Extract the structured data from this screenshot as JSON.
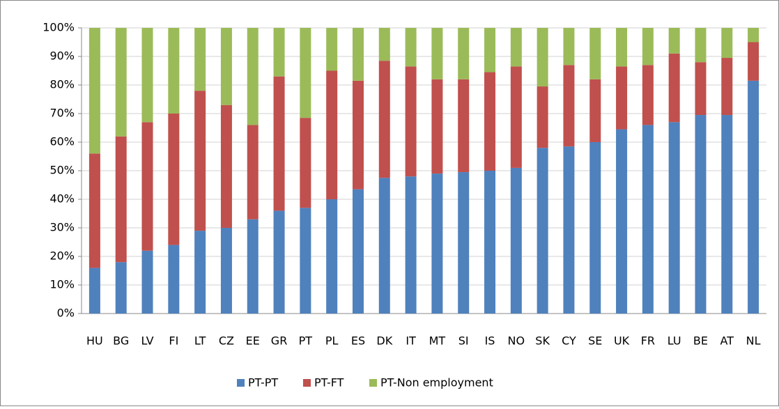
{
  "chart_data": {
    "type": "stacked_bar",
    "categories": [
      "HU",
      "BG",
      "LV",
      "FI",
      "LT",
      "CZ",
      "EE",
      "GR",
      "PT",
      "PL",
      "ES",
      "DK",
      "IT",
      "MT",
      "SI",
      "IS",
      "NO",
      "SK",
      "CY",
      "SE",
      "UK",
      "FR",
      "LU",
      "BE",
      "AT",
      "NL"
    ],
    "series": [
      {
        "name": "PT-PT",
        "color": "#4f81bd",
        "values": [
          16,
          18,
          22,
          24,
          29,
          30,
          33,
          36,
          37,
          40,
          43.5,
          47.5,
          48,
          49,
          49.5,
          50,
          51,
          58,
          58.5,
          60,
          64.5,
          66,
          67,
          69.5,
          69.5,
          81.5
        ]
      },
      {
        "name": "PT-FT",
        "color": "#c0504d",
        "values": [
          40,
          44,
          45,
          46,
          49,
          43,
          33,
          47,
          31.5,
          45,
          38,
          41,
          38.5,
          33,
          32.5,
          34.5,
          35.5,
          21.5,
          28.5,
          22,
          22,
          21,
          24,
          18.5,
          20,
          13.5
        ]
      },
      {
        "name": "PT-Non employment",
        "color": "#9bbb59",
        "values": [
          44,
          38,
          33,
          30,
          22,
          27,
          34,
          17,
          31.5,
          15,
          18.5,
          11.5,
          13.5,
          18,
          18,
          15.5,
          13.5,
          20.5,
          13,
          18,
          13.5,
          13,
          9,
          12,
          10.5,
          5
        ]
      }
    ],
    "ylim": [
      0,
      100
    ],
    "yticks": [
      {
        "value": 0,
        "label": "0%"
      },
      {
        "value": 10,
        "label": "10%"
      },
      {
        "value": 20,
        "label": "20%"
      },
      {
        "value": 30,
        "label": "30%"
      },
      {
        "value": 40,
        "label": "40%"
      },
      {
        "value": 50,
        "label": "50%"
      },
      {
        "value": 60,
        "label": "60%"
      },
      {
        "value": 70,
        "label": "70%"
      },
      {
        "value": 80,
        "label": "80%"
      },
      {
        "value": 90,
        "label": "90%"
      },
      {
        "value": 100,
        "label": "100%"
      }
    ],
    "grid": true,
    "legend": "bottom"
  }
}
